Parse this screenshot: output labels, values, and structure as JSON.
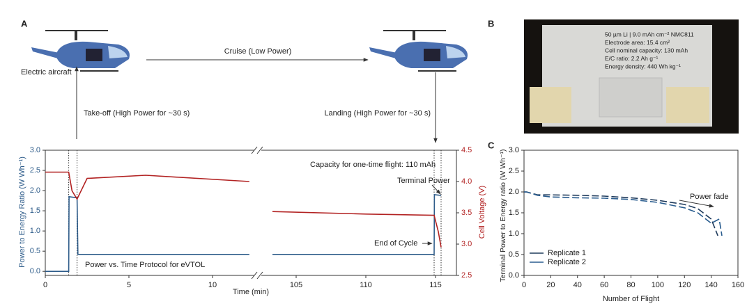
{
  "panel_labels": [
    "A",
    "B",
    "C"
  ],
  "diagram": {
    "aircraft_label": "Electric aircraft",
    "cruise": "Cruise (Low Power)",
    "takeoff": "Take-off (High Power for ~30 s)",
    "landing": "Landing (High Power for ~30 s)"
  },
  "photo": {
    "lines": [
      "50 µm Li | 9.0 mAh cm⁻² NMC811",
      "Electrode area: 15.4 cm²",
      "Cell nominal capacity: 130 mAh",
      "E/C ratio: 2.2 Ah g⁻¹",
      "Energy density: 440 Wh kg⁻¹"
    ]
  },
  "chart_data": [
    {
      "type": "line",
      "xlabel": "Time (min)",
      "ylabel": "Power to Energy Ratio (W Wh⁻¹)",
      "y2label": "Cell Voltage (V)",
      "x_segments": [
        {
          "xlim": [
            0,
            12.5
          ],
          "xticks": [
            0,
            5,
            10
          ]
        },
        {
          "xlim": [
            102.5,
            116.5
          ],
          "xticks": [
            105,
            110,
            115
          ]
        }
      ],
      "ylim": [
        -0.1,
        3.0
      ],
      "yticks": [
        {
          "value": 0,
          "label": "0.0"
        },
        0.5,
        {
          "value": 1,
          "label": "1.0"
        },
        1.5,
        {
          "value": 2,
          "label": "2.0"
        },
        2.5,
        {
          "value": 3,
          "label": "3.0"
        }
      ],
      "y2lim": [
        2.5,
        4.5
      ],
      "y2ticks": [
        2.5,
        {
          "value": 3,
          "label": "3.0"
        },
        3.5,
        {
          "value": 4,
          "label": "4.0"
        },
        4.5
      ],
      "vlines": [
        1.4,
        1.9,
        114.9,
        115.4
      ],
      "annotations": [
        "Capacity for one-time flight: 110 mAh",
        "Terminal Power",
        "End of Cycle",
        "Power vs. Time Protocol for eVTOL"
      ],
      "series": [
        {
          "color": "#2e5c8a",
          "x": [
            0,
            1.4,
            1.42,
            1.9,
            1.95,
            12.2,
            null,
            103.3,
            114.9,
            114.92,
            115.4
          ],
          "values": [
            0,
            0,
            1.85,
            1.82,
            0.42,
            0.42,
            null,
            0.42,
            0.42,
            1.9,
            1.88
          ]
        },
        {
          "color": "#b22222",
          "axis": "y2",
          "x": [
            0,
            1.4,
            1.6,
            1.9,
            2.5,
            6,
            12.2,
            null,
            103.3,
            110,
            114.9,
            115.2,
            115.4
          ],
          "values": [
            4.15,
            4.15,
            3.85,
            3.72,
            4.05,
            4.1,
            4.0,
            null,
            3.52,
            3.48,
            3.46,
            3.2,
            2.95
          ]
        }
      ]
    },
    {
      "type": "line",
      "xlabel": "Number of Flight",
      "ylabel": "Terminal Power to Energy ratio (W Wh⁻¹)",
      "xlim": [
        0,
        160
      ],
      "xticks": [
        0,
        20,
        40,
        60,
        80,
        100,
        120,
        140,
        160
      ],
      "ylim": [
        0,
        3.0
      ],
      "yticks": [
        {
          "value": 0,
          "label": "0.0"
        },
        0.5,
        {
          "value": 1,
          "label": "1.0"
        },
        1.5,
        {
          "value": 2,
          "label": "2.0"
        },
        2.5,
        {
          "value": 3,
          "label": "3.0"
        }
      ],
      "dashed": true,
      "legend": "lower left",
      "annotations": [
        "Power fade"
      ],
      "series": [
        {
          "name": "Replicate 1",
          "color": "#1f3b5c",
          "x": [
            0,
            2,
            10,
            20,
            40,
            60,
            80,
            100,
            120,
            130,
            140,
            145
          ],
          "values": [
            2.0,
            2.0,
            1.93,
            1.93,
            1.92,
            1.9,
            1.86,
            1.8,
            1.7,
            1.6,
            1.35,
            0.95
          ]
        },
        {
          "name": "Replicate 2",
          "color": "#2a5d8f",
          "x": [
            0,
            2,
            10,
            20,
            40,
            60,
            80,
            100,
            120,
            130,
            140,
            146,
            148
          ],
          "values": [
            2.0,
            2.0,
            1.92,
            1.88,
            1.86,
            1.85,
            1.82,
            1.75,
            1.62,
            1.5,
            1.25,
            1.35,
            0.95
          ]
        }
      ]
    }
  ]
}
